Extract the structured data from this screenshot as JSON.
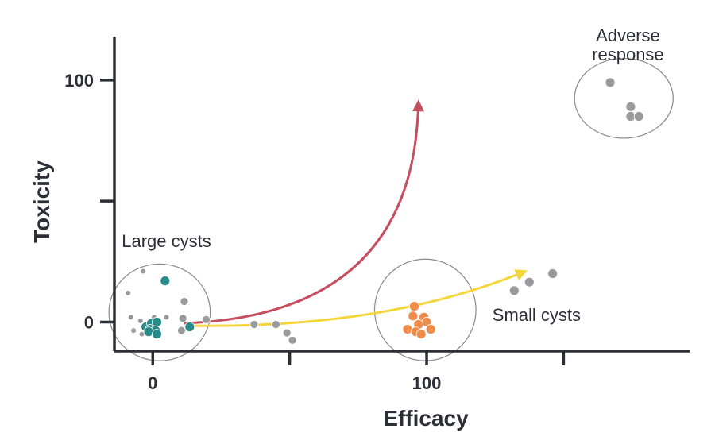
{
  "chart_data": {
    "type": "scatter",
    "xlabel": "Efficacy",
    "ylabel": "Toxicity",
    "xlim": [
      -14,
      196
    ],
    "ylim": [
      -12,
      118
    ],
    "xticks": [
      {
        "value": 0,
        "label": "0"
      },
      {
        "value": 50,
        "label": ""
      },
      {
        "value": 100,
        "label": "100"
      },
      {
        "value": 150,
        "label": ""
      }
    ],
    "yticks": [
      {
        "value": 0,
        "label": "0"
      },
      {
        "value": 50,
        "label": ""
      },
      {
        "value": 100,
        "label": "100"
      }
    ],
    "grid": false,
    "series": [
      {
        "color": "#9a9a9e",
        "points": [
          {
            "x": -3.5,
            "y": 21.0,
            "r": "s"
          },
          {
            "x": -9.0,
            "y": 12.0,
            "r": "s"
          },
          {
            "x": -8.0,
            "y": 2.0,
            "r": "s"
          },
          {
            "x": -4.5,
            "y": 0.5,
            "r": "s"
          },
          {
            "x": -7.0,
            "y": -3.5,
            "r": "s"
          },
          {
            "x": -4.0,
            "y": -5.0,
            "r": "s"
          },
          {
            "x": 0.5,
            "y": 2.0,
            "r": "s"
          },
          {
            "x": 5.0,
            "y": 2.0,
            "r": "s"
          },
          {
            "x": 11.5,
            "y": 8.5,
            "r": "m"
          },
          {
            "x": 11.0,
            "y": 1.5,
            "r": "m"
          },
          {
            "x": 10.5,
            "y": -3.5,
            "r": "m"
          },
          {
            "x": 19.5,
            "y": 1.0,
            "r": "m"
          },
          {
            "x": 37.0,
            "y": -1.0,
            "r": "m"
          },
          {
            "x": 45.0,
            "y": -1.0,
            "r": "m"
          },
          {
            "x": 49.0,
            "y": -4.5,
            "r": "m"
          },
          {
            "x": 51.0,
            "y": -7.5,
            "r": "m"
          },
          {
            "x": 132.0,
            "y": 13.0,
            "r": "l"
          },
          {
            "x": 137.5,
            "y": 16.5,
            "r": "l"
          },
          {
            "x": 146.0,
            "y": 20.0,
            "r": "l"
          },
          {
            "x": 167.0,
            "y": 99.0,
            "r": "l"
          },
          {
            "x": 174.5,
            "y": 89.0,
            "r": "l"
          },
          {
            "x": 174.5,
            "y": 85.0,
            "r": "l"
          },
          {
            "x": 177.5,
            "y": 85.0,
            "r": "l"
          }
        ]
      },
      {
        "color": "#2a8a8a",
        "points": [
          {
            "x": 4.5,
            "y": 17.0,
            "r": "l"
          },
          {
            "x": -2.5,
            "y": -2.0,
            "r": "l"
          },
          {
            "x": -0.5,
            "y": -0.5,
            "r": "l"
          },
          {
            "x": 1.5,
            "y": 0.0,
            "r": "l"
          },
          {
            "x": -1.0,
            "y": -3.0,
            "r": "l"
          },
          {
            "x": 1.0,
            "y": -3.5,
            "r": "l"
          },
          {
            "x": -1.5,
            "y": -4.0,
            "r": "l"
          },
          {
            "x": 1.5,
            "y": -5.0,
            "r": "l"
          },
          {
            "x": 13.5,
            "y": -2.0,
            "r": "l"
          }
        ]
      },
      {
        "color": "#f08c4a",
        "points": [
          {
            "x": 95.5,
            "y": 6.5,
            "r": "l"
          },
          {
            "x": 95.0,
            "y": 2.5,
            "r": "l"
          },
          {
            "x": 99.0,
            "y": 2.0,
            "r": "l"
          },
          {
            "x": 100.0,
            "y": 0.0,
            "r": "l"
          },
          {
            "x": 97.0,
            "y": -1.0,
            "r": "l"
          },
          {
            "x": 93.0,
            "y": -3.0,
            "r": "l"
          },
          {
            "x": 101.5,
            "y": -3.0,
            "r": "l"
          },
          {
            "x": 96.0,
            "y": -4.0,
            "r": "l"
          },
          {
            "x": 98.0,
            "y": -5.0,
            "r": "l"
          }
        ]
      }
    ],
    "clusters": [
      {
        "cx": 2.5,
        "cy": 4.0,
        "rx": 18.5,
        "ry": 20.0
      },
      {
        "cx": 99.5,
        "cy": 5.0,
        "rx": 18.5,
        "ry": 21.0
      },
      {
        "cx": 172.0,
        "cy": 92.5,
        "rx": 18.0,
        "ry": 16.5
      }
    ],
    "arrows": [
      {
        "color": "#c44d5e",
        "from": [
          11.5,
          -0.5
        ],
        "control": [
          95.5,
          3.0
        ],
        "to": [
          97.0,
          91.0
        ]
      },
      {
        "color": "#f5d63a",
        "from": [
          12.0,
          -1.5
        ],
        "control": [
          85.0,
          -3.0
        ],
        "to": [
          136.0,
          21.0
        ]
      }
    ],
    "annotations": [
      {
        "lines": [
          "Large cysts"
        ],
        "x": 5.0,
        "y": 31.0,
        "anchor": "middle"
      },
      {
        "lines": [
          "Small cysts"
        ],
        "x": 124.0,
        "y": 0.5,
        "anchor": "start"
      },
      {
        "lines": [
          "Adverse",
          "response"
        ],
        "x": 173.5,
        "y": 116.0,
        "anchor": "middle"
      }
    ]
  }
}
